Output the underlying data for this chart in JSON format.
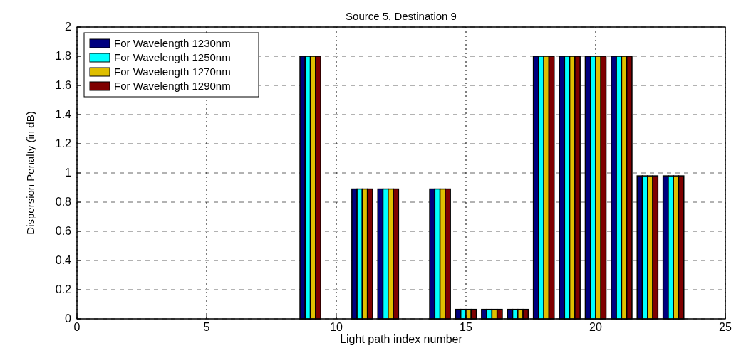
{
  "chart_data": {
    "type": "bar",
    "title": "Source 5, Destination 9",
    "xlabel": "Light path index number",
    "ylabel": "Dispersion Penalty (in dB)",
    "x": [
      9,
      11,
      12,
      14,
      15,
      16,
      17,
      18,
      19,
      20,
      21,
      22,
      23
    ],
    "series": [
      {
        "name": "For Wavelength 1230nm",
        "color": "#00007f",
        "values": [
          1.8,
          0.89,
          0.89,
          0.89,
          0.065,
          0.065,
          0.065,
          1.8,
          1.8,
          1.8,
          1.8,
          0.98,
          0.98
        ]
      },
      {
        "name": "For Wavelength 1250nm",
        "color": "#00ffff",
        "values": [
          1.8,
          0.89,
          0.89,
          0.89,
          0.065,
          0.065,
          0.065,
          1.8,
          1.8,
          1.8,
          1.8,
          0.98,
          0.98
        ]
      },
      {
        "name": "For Wavelength 1270nm",
        "color": "#dfbf00",
        "values": [
          1.8,
          0.89,
          0.89,
          0.89,
          0.065,
          0.065,
          0.065,
          1.8,
          1.8,
          1.8,
          1.8,
          0.98,
          0.98
        ]
      },
      {
        "name": "For Wavelength 1290nm",
        "color": "#7f0000",
        "values": [
          1.8,
          0.89,
          0.89,
          0.89,
          0.065,
          0.065,
          0.065,
          1.8,
          1.8,
          1.8,
          1.8,
          0.98,
          0.98
        ]
      }
    ],
    "xlim": [
      0,
      25
    ],
    "xticks": [
      0,
      5,
      10,
      15,
      20,
      25
    ],
    "ylim": [
      0,
      2
    ],
    "yticks": [
      0,
      0.2,
      0.4,
      0.6,
      0.8,
      1,
      1.2,
      1.4,
      1.6,
      1.8,
      2
    ],
    "grid": true,
    "legend": "top left"
  }
}
